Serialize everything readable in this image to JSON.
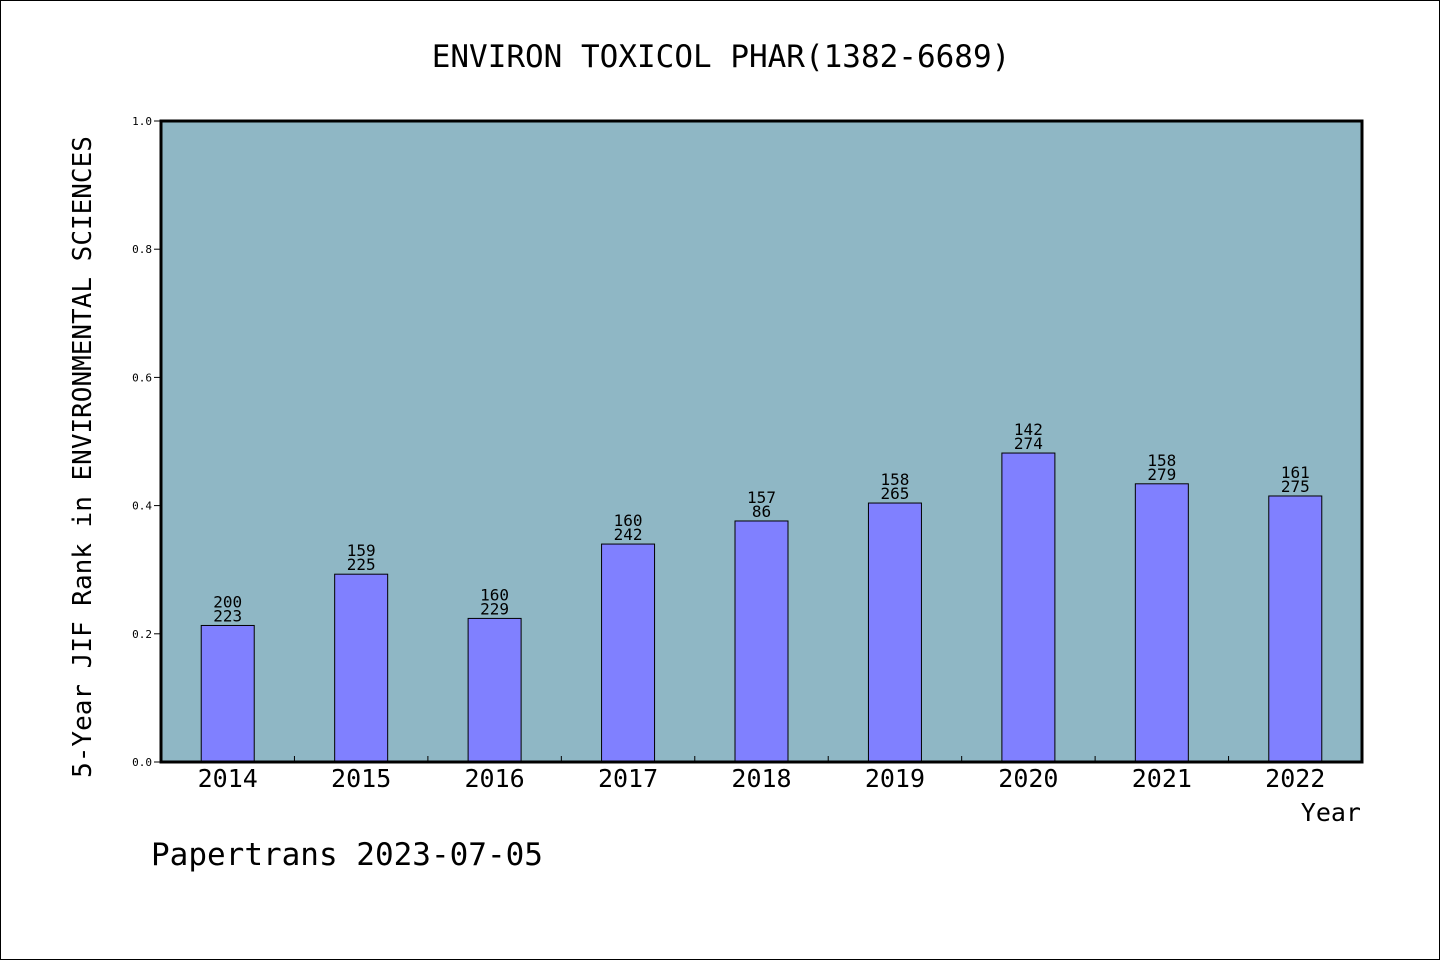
{
  "chart_data": {
    "type": "bar",
    "title": "ENVIRON TOXICOL PHAR(1382-6689)",
    "xlabel": "Year",
    "ylabel": "5-Year JIF Rank in ENVIRONMENTAL SCIENCES",
    "ylim": [
      0,
      1.0
    ],
    "yticks": [
      "0.0",
      "0.2",
      "0.4",
      "0.6",
      "0.8",
      "1.0"
    ],
    "categories": [
      "2014",
      "2015",
      "2016",
      "2017",
      "2018",
      "2019",
      "2020",
      "2021",
      "2022"
    ],
    "values": [
      0.213,
      0.293,
      0.224,
      0.34,
      0.376,
      0.404,
      0.482,
      0.434,
      0.415
    ],
    "label_top": [
      "200",
      "159",
      "160",
      "160",
      "157",
      "158",
      "142",
      "158",
      "161"
    ],
    "label_bottom": [
      "223",
      "225",
      "229",
      "242",
      "86",
      "265",
      "274",
      "279",
      "275"
    ],
    "grid": false,
    "plot_background": "#8fb7c5",
    "bar_color": "#8080ff"
  },
  "footer": "Papertrans 2023-07-05"
}
